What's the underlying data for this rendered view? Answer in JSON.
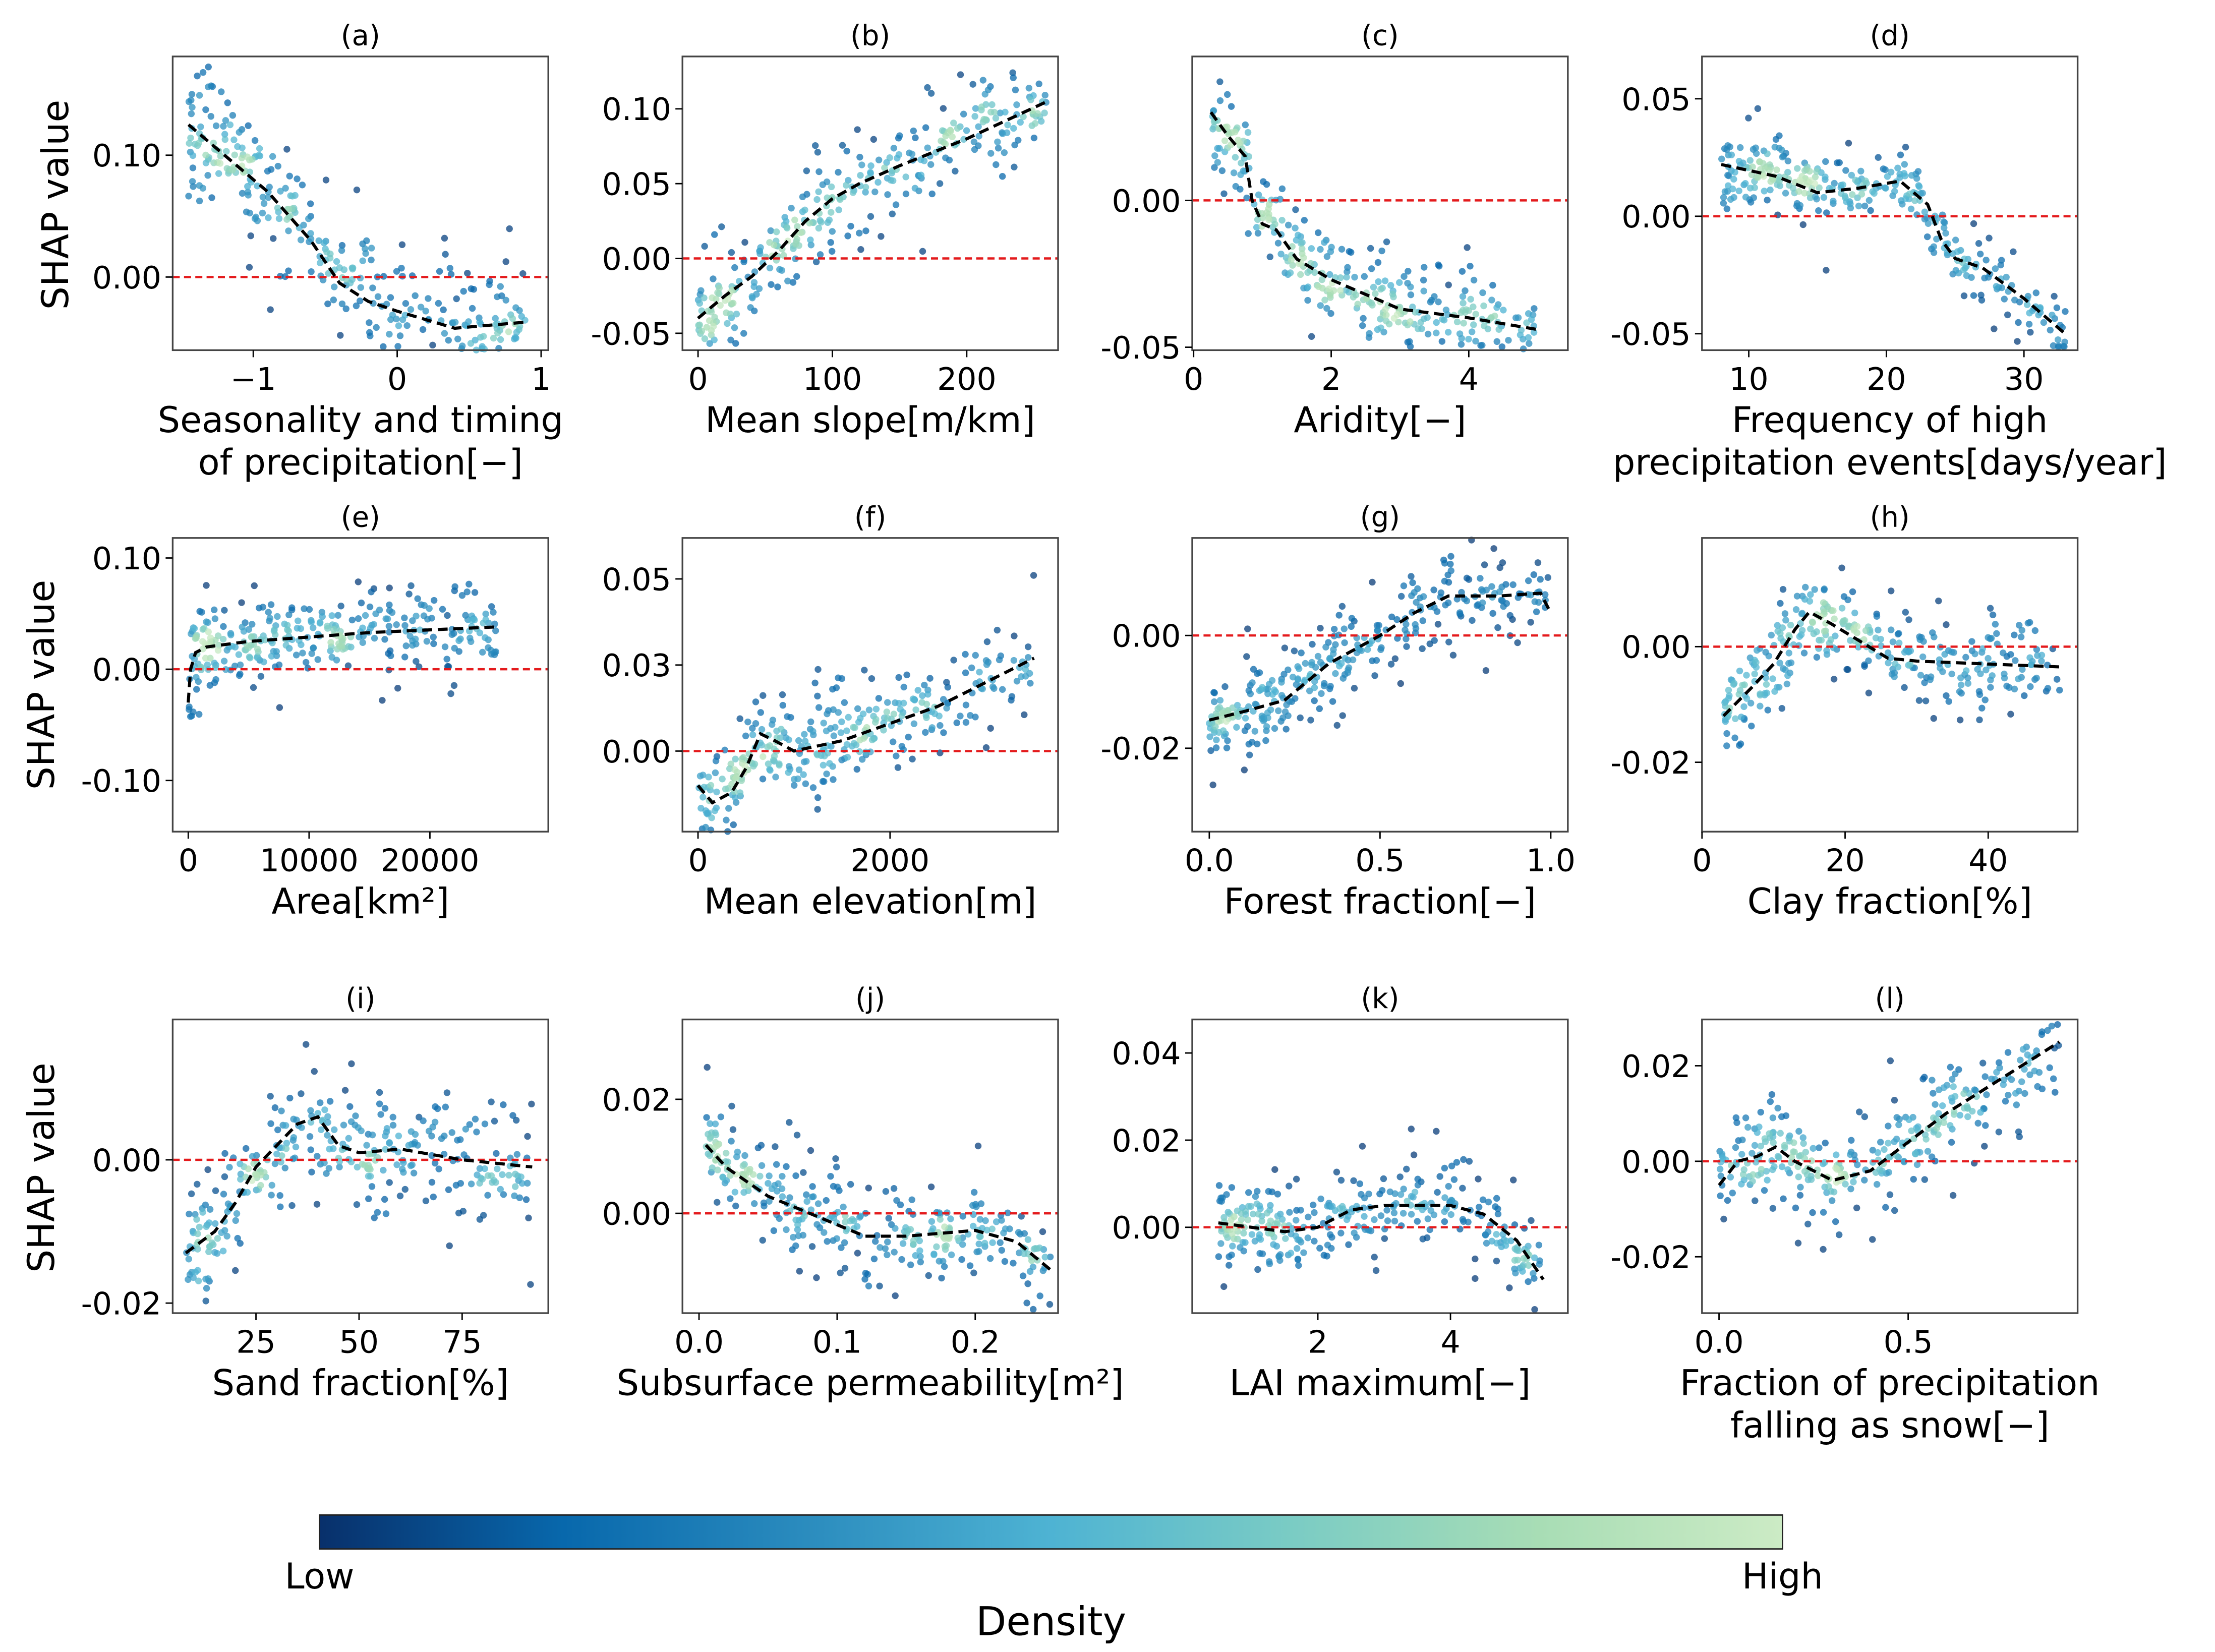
{
  "chart_data": {
    "type": "scatter",
    "ylabel": "SHAP value",
    "reference_line": {
      "y": 0,
      "color": "#e41a1c",
      "style": "dashed"
    },
    "trend_color": "#000000",
    "colorbar": {
      "label": "Density",
      "low_label": "Low",
      "high_label": "High",
      "colors": [
        "#08306b",
        "#0868ac",
        "#2b8cbe",
        "#4eb3d3",
        "#7bccc4",
        "#a8ddb5",
        "#ccebc5"
      ]
    },
    "panels": [
      {
        "title": "(a)",
        "xlabel": [
          "Seasonality and timing",
          "of precipitation[−]"
        ],
        "xlim": [
          -1.56,
          1.05
        ],
        "ylim": [
          -0.06,
          0.181
        ],
        "xticks": [
          [
            -1,
            "−1"
          ],
          [
            0,
            "0"
          ],
          [
            1,
            "1"
          ]
        ],
        "yticks": [
          [
            0.1,
            "0.10"
          ],
          [
            0,
            "0.00"
          ]
        ],
        "spread": 0.025,
        "trend": [
          [
            -1.45,
            0.125
          ],
          [
            -1.2,
            0.1
          ],
          [
            -0.9,
            0.07
          ],
          [
            -0.6,
            0.03
          ],
          [
            -0.4,
            -0.005
          ],
          [
            -0.2,
            -0.02
          ],
          [
            0,
            -0.028
          ],
          [
            0.2,
            -0.035
          ],
          [
            0.4,
            -0.042
          ],
          [
            0.6,
            -0.04
          ],
          [
            0.9,
            -0.037
          ]
        ]
      },
      {
        "title": "(b)",
        "xlabel": [
          "Mean slope[m/km]"
        ],
        "xlim": [
          -11.6,
          268
        ],
        "ylim": [
          -0.0613,
          0.135
        ],
        "xticks": [
          [
            0,
            "0"
          ],
          [
            100,
            "100"
          ],
          [
            200,
            "200"
          ]
        ],
        "yticks": [
          [
            0.1,
            "0.10"
          ],
          [
            0.05,
            "0.05"
          ],
          [
            0,
            "0.00"
          ],
          [
            -0.05,
            "-0.05"
          ]
        ],
        "spread": 0.015,
        "trend": [
          [
            0,
            -0.04
          ],
          [
            20,
            -0.025
          ],
          [
            40,
            -0.012
          ],
          [
            60,
            0.005
          ],
          [
            80,
            0.025
          ],
          [
            100,
            0.04
          ],
          [
            120,
            0.05
          ],
          [
            150,
            0.062
          ],
          [
            200,
            0.08
          ],
          [
            260,
            0.105
          ]
        ]
      },
      {
        "title": "(c)",
        "xlabel": [
          "Aridity[−]"
        ],
        "xlim": [
          -0.02,
          5.44
        ],
        "ylim": [
          -0.051,
          0.049
        ],
        "xticks": [
          [
            0,
            "0"
          ],
          [
            2,
            "2"
          ],
          [
            4,
            "4"
          ]
        ],
        "yticks": [
          [
            0,
            "0.00"
          ],
          [
            -0.05,
            "-0.05"
          ]
        ],
        "spread": 0.008,
        "trend": [
          [
            0.25,
            0.03
          ],
          [
            0.5,
            0.022
          ],
          [
            0.75,
            0.015
          ],
          [
            0.85,
            0.0
          ],
          [
            1.0,
            -0.008
          ],
          [
            1.2,
            -0.01
          ],
          [
            1.5,
            -0.02
          ],
          [
            2,
            -0.027
          ],
          [
            3,
            -0.037
          ],
          [
            4,
            -0.04
          ],
          [
            5,
            -0.044
          ]
        ]
      },
      {
        "title": "(d)",
        "xlabel": [
          "Frequency of high",
          "precipitation events[days/year]"
        ],
        "xlim": [
          6.6,
          33.9
        ],
        "ylim": [
          -0.057,
          0.068
        ],
        "xticks": [
          [
            10,
            "10"
          ],
          [
            20,
            "20"
          ],
          [
            30,
            "30"
          ]
        ],
        "yticks": [
          [
            0.05,
            "0.05"
          ],
          [
            0,
            "0.00"
          ],
          [
            -0.05,
            "-0.05"
          ]
        ],
        "spread": 0.008,
        "trend": [
          [
            8,
            0.022
          ],
          [
            12,
            0.017
          ],
          [
            15,
            0.01
          ],
          [
            18,
            0.012
          ],
          [
            21,
            0.015
          ],
          [
            23,
            0.005
          ],
          [
            24,
            -0.01
          ],
          [
            25,
            -0.018
          ],
          [
            27,
            -0.022
          ],
          [
            30,
            -0.035
          ],
          [
            33,
            -0.05
          ]
        ]
      },
      {
        "title": "(e)",
        "xlabel": [
          "Area[km²]"
        ],
        "xlim": [
          -1290,
          29800
        ],
        "ylim": [
          -0.146,
          0.118
        ],
        "xticks": [
          [
            0,
            "0"
          ],
          [
            10000,
            "10000"
          ],
          [
            20000,
            "20000"
          ]
        ],
        "yticks": [
          [
            0.1,
            "0.10"
          ],
          [
            0,
            "0.00"
          ],
          [
            -0.1,
            "-0.10"
          ]
        ],
        "spread": 0.02,
        "trend": [
          [
            0,
            -0.03
          ],
          [
            200,
            0.0
          ],
          [
            600,
            0.015
          ],
          [
            1500,
            0.02
          ],
          [
            5000,
            0.025
          ],
          [
            15000,
            0.033
          ],
          [
            25500,
            0.038
          ]
        ]
      },
      {
        "title": "(f)",
        "xlabel": [
          "Mean elevation[m]"
        ],
        "xlim": [
          -162,
          3750
        ],
        "ylim": [
          -0.0234,
          0.0619
        ],
        "xticks": [
          [
            0,
            "0"
          ],
          [
            2000,
            "2000"
          ]
        ],
        "yticks": [
          [
            0.05,
            "0.05"
          ],
          [
            0.025,
            "0.03"
          ],
          [
            0,
            "0.00"
          ]
        ],
        "spread": 0.007,
        "trend": [
          [
            0,
            -0.01
          ],
          [
            150,
            -0.015
          ],
          [
            350,
            -0.012
          ],
          [
            500,
            -0.005
          ],
          [
            650,
            0.005
          ],
          [
            800,
            0.003
          ],
          [
            1000,
            0.0
          ],
          [
            1500,
            0.003
          ],
          [
            2000,
            0.008
          ],
          [
            2500,
            0.013
          ],
          [
            3000,
            0.02
          ],
          [
            3500,
            0.027
          ]
        ]
      },
      {
        "title": "(g)",
        "xlabel": [
          "Forest fraction[−]"
        ],
        "xlim": [
          -0.05,
          1.05
        ],
        "ylim": [
          -0.0348,
          0.0173
        ],
        "xticks": [
          [
            0,
            "0.0"
          ],
          [
            0.5,
            "0.5"
          ],
          [
            1,
            "1.0"
          ]
        ],
        "yticks": [
          [
            0,
            "0.00"
          ],
          [
            -0.02,
            "-0.02"
          ]
        ],
        "spread": 0.004,
        "trend": [
          [
            0,
            -0.015
          ],
          [
            0.1,
            -0.0135
          ],
          [
            0.22,
            -0.0115
          ],
          [
            0.35,
            -0.005
          ],
          [
            0.5,
            0.0
          ],
          [
            0.6,
            0.004
          ],
          [
            0.7,
            0.007
          ],
          [
            0.85,
            0.007
          ],
          [
            0.97,
            0.0075
          ],
          [
            1.0,
            0.004
          ]
        ]
      },
      {
        "title": "(h)",
        "xlabel": [
          "Clay fraction[%]"
        ],
        "xlim": [
          0,
          52.5
        ],
        "ylim": [
          -0.032,
          0.0188
        ],
        "xticks": [
          [
            0,
            "0"
          ],
          [
            20,
            "20"
          ],
          [
            40,
            "40"
          ]
        ],
        "yticks": [
          [
            0,
            "0.00"
          ],
          [
            -0.02,
            "-0.02"
          ]
        ],
        "spread": 0.004,
        "trend": [
          [
            3,
            -0.012
          ],
          [
            7,
            -0.007
          ],
          [
            10,
            -0.003
          ],
          [
            13,
            0.003
          ],
          [
            15,
            0.006
          ],
          [
            18,
            0.004
          ],
          [
            22,
            0.001
          ],
          [
            26,
            -0.002
          ],
          [
            30,
            -0.0025
          ],
          [
            40,
            -0.003
          ],
          [
            50,
            -0.0035
          ]
        ]
      },
      {
        "title": "(i)",
        "xlabel": [
          "Sand fraction[%]"
        ],
        "xlim": [
          4.8,
          95.9
        ],
        "ylim": [
          -0.0214,
          0.0196
        ],
        "xticks": [
          [
            25,
            "25"
          ],
          [
            50,
            "50"
          ],
          [
            75,
            "75"
          ]
        ],
        "yticks": [
          [
            0,
            "0.00"
          ],
          [
            -0.02,
            "-0.02"
          ]
        ],
        "spread": 0.004,
        "trend": [
          [
            8,
            -0.013
          ],
          [
            15,
            -0.01
          ],
          [
            20,
            -0.006
          ],
          [
            25,
            -0.001
          ],
          [
            30,
            0.002
          ],
          [
            35,
            0.005
          ],
          [
            40,
            0.006
          ],
          [
            45,
            0.002
          ],
          [
            50,
            0.001
          ],
          [
            60,
            0.0015
          ],
          [
            75,
            0.0
          ],
          [
            92,
            -0.001
          ]
        ]
      },
      {
        "title": "(j)",
        "xlabel": [
          "Subsurface permeability[m²]"
        ],
        "xlim": [
          -0.012,
          0.26
        ],
        "ylim": [
          -0.0175,
          0.034
        ],
        "xticks": [
          [
            0,
            "0.0"
          ],
          [
            0.1,
            "0.1"
          ],
          [
            0.2,
            "0.2"
          ]
        ],
        "yticks": [
          [
            0.02,
            "0.02"
          ],
          [
            0,
            "0.00"
          ]
        ],
        "spread": 0.004,
        "trend": [
          [
            0.005,
            0.012
          ],
          [
            0.02,
            0.008
          ],
          [
            0.05,
            0.003
          ],
          [
            0.08,
            0.0
          ],
          [
            0.12,
            -0.004
          ],
          [
            0.15,
            -0.004
          ],
          [
            0.2,
            -0.003
          ],
          [
            0.23,
            -0.005
          ],
          [
            0.255,
            -0.01
          ]
        ]
      },
      {
        "title": "(k)",
        "xlabel": [
          "LAI maximum[−]"
        ],
        "xlim": [
          0.106,
          5.77
        ],
        "ylim": [
          -0.0197,
          0.0477
        ],
        "xticks": [
          [
            2,
            "2"
          ],
          [
            4,
            "4"
          ]
        ],
        "yticks": [
          [
            0.04,
            "0.04"
          ],
          [
            0.02,
            "0.02"
          ],
          [
            0,
            "0.00"
          ]
        ],
        "spread": 0.005,
        "trend": [
          [
            0.5,
            0.001
          ],
          [
            1,
            0.0
          ],
          [
            1.5,
            -0.001
          ],
          [
            2,
            0.0
          ],
          [
            2.5,
            0.004
          ],
          [
            3,
            0.005
          ],
          [
            3.5,
            0.005
          ],
          [
            4,
            0.005
          ],
          [
            4.5,
            0.003
          ],
          [
            5,
            -0.003
          ],
          [
            5.4,
            -0.012
          ]
        ]
      },
      {
        "title": "(l)",
        "xlabel": [
          "Fraction of precipitation",
          "falling as snow[−]"
        ],
        "xlim": [
          -0.045,
          0.948
        ],
        "ylim": [
          -0.0318,
          0.0297
        ],
        "xticks": [
          [
            0,
            "0.0"
          ],
          [
            0.5,
            "0.5"
          ]
        ],
        "yticks": [
          [
            0.02,
            "0.02"
          ],
          [
            0,
            "0.00"
          ],
          [
            -0.02,
            "-0.02"
          ]
        ],
        "spread": 0.005,
        "trend": [
          [
            0,
            -0.005
          ],
          [
            0.05,
            0.0
          ],
          [
            0.1,
            0.001
          ],
          [
            0.15,
            0.003
          ],
          [
            0.2,
            0.0
          ],
          [
            0.3,
            -0.004
          ],
          [
            0.4,
            -0.002
          ],
          [
            0.5,
            0.004
          ],
          [
            0.6,
            0.01
          ],
          [
            0.7,
            0.015
          ],
          [
            0.8,
            0.02
          ],
          [
            0.9,
            0.025
          ]
        ]
      }
    ]
  }
}
